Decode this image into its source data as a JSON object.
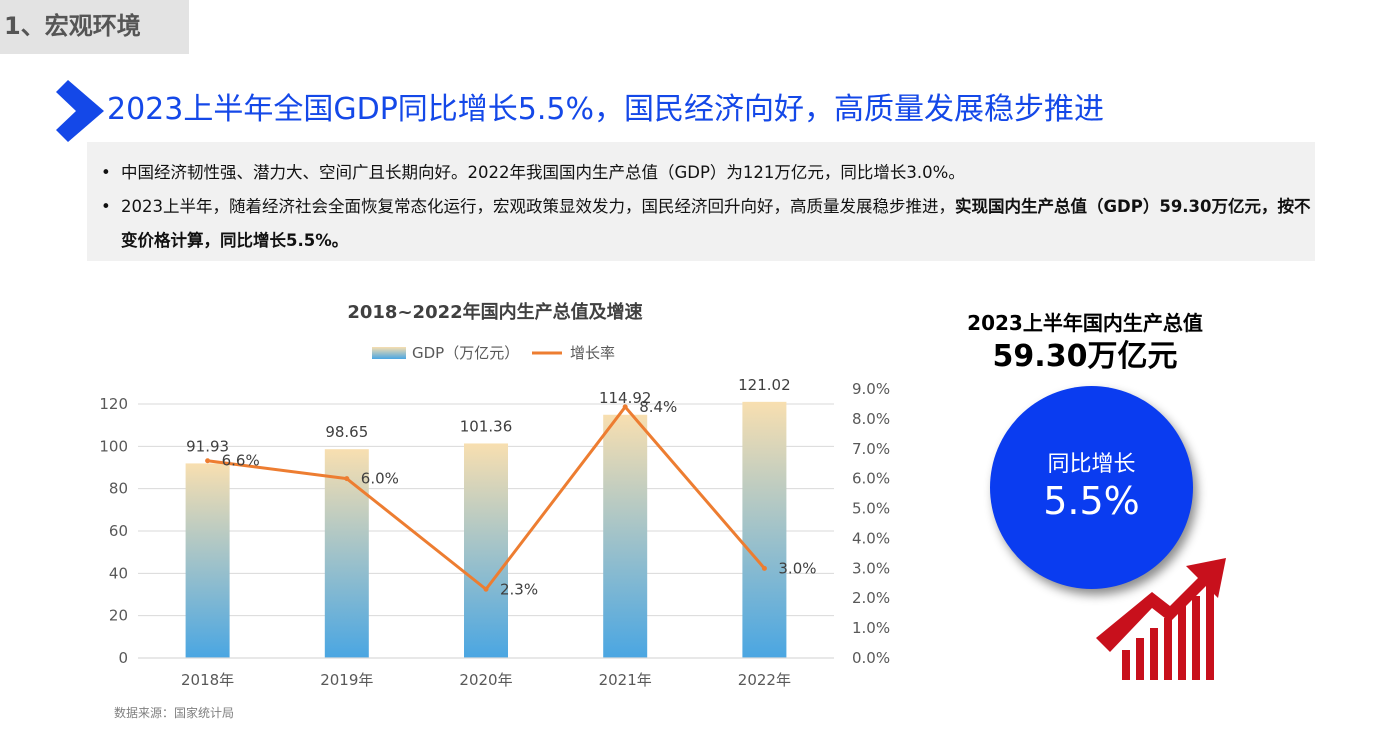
{
  "section": {
    "label": "1、宏观环境"
  },
  "headline": "2023上半年全国GDP同比增长5.5%，国民经济向好，高质量发展稳步推进",
  "summary": {
    "bullet_symbol": "•",
    "line1": "中国经济韧性强、潜力大、空间广且长期向好。2022年我国国内生产总值（GDP）为121万亿元，同比增长3.0%。",
    "line2_normal": "2023上半年，随着经济社会全面恢复常态化运行，宏观政策显效发力，国民经济回升向好，高质量发展稳步推进，",
    "line2_bold": "实现国内生产总值（GDP）59.30万亿元，按不变价格计算，同比增长5.5%。"
  },
  "chart_data": {
    "type": "bar",
    "title": "2018~2022年国内生产总值及增速",
    "categories": [
      "2018年",
      "2019年",
      "2020年",
      "2021年",
      "2022年"
    ],
    "series": [
      {
        "name": "GDP（万亿元）",
        "type": "bar",
        "axis": "left",
        "values": [
          91.93,
          98.65,
          101.36,
          114.92,
          121.02
        ],
        "labels": [
          "91.93",
          "98.65",
          "101.36",
          "114.92",
          "121.02"
        ]
      },
      {
        "name": "增长率",
        "type": "line",
        "axis": "right",
        "values": [
          6.6,
          6.0,
          2.3,
          8.4,
          3.0
        ],
        "labels": [
          "6.6%",
          "6.0%",
          "2.3%",
          "8.4%",
          "3.0%"
        ]
      }
    ],
    "y_left": {
      "min": 0,
      "max": 130,
      "ticks": [
        0,
        20,
        40,
        60,
        80,
        100,
        120
      ]
    },
    "y_right": {
      "min": 0,
      "max": 9,
      "ticks": [
        "0.0%",
        "1.0%",
        "2.0%",
        "3.0%",
        "4.0%",
        "5.0%",
        "6.0%",
        "7.0%",
        "8.0%",
        "9.0%"
      ]
    },
    "grid": true,
    "legend": "top",
    "source": "数据来源：国家统计局",
    "colors": {
      "bar_top": "#f8dfb0",
      "bar_bottom": "#4aa6e2",
      "line": "#ed7d31",
      "grid": "#d9d9d9",
      "text": "#595959"
    }
  },
  "kpi": {
    "title": "2023上半年国内生产总值",
    "value": "59.30万亿元",
    "growth_label": "同比增长",
    "growth_value": "5.5%",
    "circle_color": "#0a3cf0",
    "icon": "bar-chart-up-arrow-icon",
    "icon_color": "#c8101c"
  }
}
